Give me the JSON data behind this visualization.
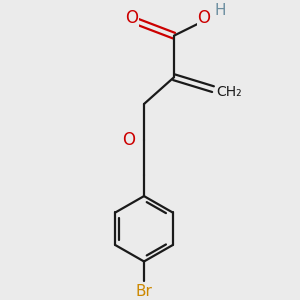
{
  "bg_color": "#ebebeb",
  "bond_color": "#1a1a1a",
  "O_color": "#cc0000",
  "H_color": "#6c8ea0",
  "Br_color": "#cc8800",
  "bond_width": 1.6,
  "font_size": 11,
  "fig_size": [
    3.0,
    3.0
  ],
  "dpi": 100,
  "xlim": [
    0,
    10
  ],
  "ylim": [
    0,
    10
  ]
}
